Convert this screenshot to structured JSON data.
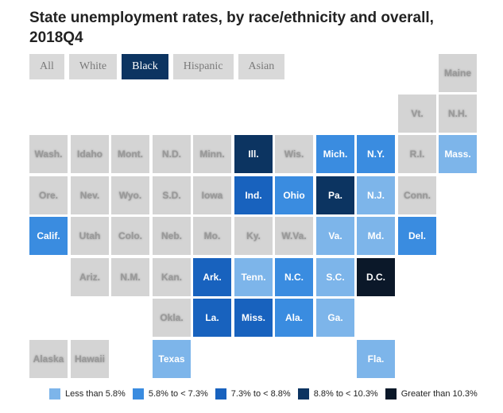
{
  "title": "State unemployment rates, by race/ethnicity and overall, 2018Q4",
  "tabs": [
    {
      "label": "All",
      "active": false
    },
    {
      "label": "White",
      "active": false
    },
    {
      "label": "Black",
      "active": true
    },
    {
      "label": "Hispanic",
      "active": false
    },
    {
      "label": "Asian",
      "active": false
    }
  ],
  "colors": {
    "nodata": "#d4d4d4",
    "bin0": "#7db5ea",
    "bin1": "#3a8ce0",
    "bin2": "#1862be",
    "bin3": "#0c3461",
    "bin4": "#0b1829"
  },
  "chart_data": {
    "type": "tile-map",
    "title": "State unemployment rates, by race/ethnicity and overall, 2018Q4",
    "selected_group": "Black",
    "legend": [
      {
        "label": "Less than 5.8%",
        "color": "#7db5ea"
      },
      {
        "label": "5.8% to < 7.3%",
        "color": "#3a8ce0"
      },
      {
        "label": "7.3% to < 8.8%",
        "color": "#1862be"
      },
      {
        "label": "8.8% to < 10.3%",
        "color": "#0c3461"
      },
      {
        "label": "Greater than 10.3%",
        "color": "#0b1829"
      }
    ],
    "states": [
      {
        "abbr": "Maine",
        "col": 10,
        "row": 0,
        "bin": null
      },
      {
        "abbr": "Vt.",
        "col": 9,
        "row": 1,
        "bin": null
      },
      {
        "abbr": "N.H.",
        "col": 10,
        "row": 1,
        "bin": null
      },
      {
        "abbr": "Wash.",
        "col": 0,
        "row": 2,
        "bin": null
      },
      {
        "abbr": "Idaho",
        "col": 1,
        "row": 2,
        "bin": null
      },
      {
        "abbr": "Mont.",
        "col": 2,
        "row": 2,
        "bin": null
      },
      {
        "abbr": "N.D.",
        "col": 3,
        "row": 2,
        "bin": null
      },
      {
        "abbr": "Minn.",
        "col": 4,
        "row": 2,
        "bin": null
      },
      {
        "abbr": "Ill.",
        "col": 5,
        "row": 2,
        "bin": 3
      },
      {
        "abbr": "Wis.",
        "col": 6,
        "row": 2,
        "bin": null
      },
      {
        "abbr": "Mich.",
        "col": 7,
        "row": 2,
        "bin": 1
      },
      {
        "abbr": "N.Y.",
        "col": 8,
        "row": 2,
        "bin": 1
      },
      {
        "abbr": "R.I.",
        "col": 9,
        "row": 2,
        "bin": null
      },
      {
        "abbr": "Mass.",
        "col": 10,
        "row": 2,
        "bin": 0
      },
      {
        "abbr": "Ore.",
        "col": 0,
        "row": 3,
        "bin": null
      },
      {
        "abbr": "Nev.",
        "col": 1,
        "row": 3,
        "bin": null
      },
      {
        "abbr": "Wyo.",
        "col": 2,
        "row": 3,
        "bin": null
      },
      {
        "abbr": "S.D.",
        "col": 3,
        "row": 3,
        "bin": null
      },
      {
        "abbr": "Iowa",
        "col": 4,
        "row": 3,
        "bin": null
      },
      {
        "abbr": "Ind.",
        "col": 5,
        "row": 3,
        "bin": 2
      },
      {
        "abbr": "Ohio",
        "col": 6,
        "row": 3,
        "bin": 1
      },
      {
        "abbr": "Pa.",
        "col": 7,
        "row": 3,
        "bin": 3
      },
      {
        "abbr": "N.J.",
        "col": 8,
        "row": 3,
        "bin": 0
      },
      {
        "abbr": "Conn.",
        "col": 9,
        "row": 3,
        "bin": null
      },
      {
        "abbr": "Calif.",
        "col": 0,
        "row": 4,
        "bin": 1
      },
      {
        "abbr": "Utah",
        "col": 1,
        "row": 4,
        "bin": null
      },
      {
        "abbr": "Colo.",
        "col": 2,
        "row": 4,
        "bin": null
      },
      {
        "abbr": "Neb.",
        "col": 3,
        "row": 4,
        "bin": null
      },
      {
        "abbr": "Mo.",
        "col": 4,
        "row": 4,
        "bin": null
      },
      {
        "abbr": "Ky.",
        "col": 5,
        "row": 4,
        "bin": null
      },
      {
        "abbr": "W.Va.",
        "col": 6,
        "row": 4,
        "bin": null
      },
      {
        "abbr": "Va.",
        "col": 7,
        "row": 4,
        "bin": 0
      },
      {
        "abbr": "Md.",
        "col": 8,
        "row": 4,
        "bin": 0
      },
      {
        "abbr": "Del.",
        "col": 9,
        "row": 4,
        "bin": 1
      },
      {
        "abbr": "Ariz.",
        "col": 1,
        "row": 5,
        "bin": null
      },
      {
        "abbr": "N.M.",
        "col": 2,
        "row": 5,
        "bin": null
      },
      {
        "abbr": "Kan.",
        "col": 3,
        "row": 5,
        "bin": null
      },
      {
        "abbr": "Ark.",
        "col": 4,
        "row": 5,
        "bin": 2
      },
      {
        "abbr": "Tenn.",
        "col": 5,
        "row": 5,
        "bin": 0
      },
      {
        "abbr": "N.C.",
        "col": 6,
        "row": 5,
        "bin": 1
      },
      {
        "abbr": "S.C.",
        "col": 7,
        "row": 5,
        "bin": 0
      },
      {
        "abbr": "D.C.",
        "col": 8,
        "row": 5,
        "bin": 4
      },
      {
        "abbr": "Okla.",
        "col": 3,
        "row": 6,
        "bin": null
      },
      {
        "abbr": "La.",
        "col": 4,
        "row": 6,
        "bin": 2
      },
      {
        "abbr": "Miss.",
        "col": 5,
        "row": 6,
        "bin": 2
      },
      {
        "abbr": "Ala.",
        "col": 6,
        "row": 6,
        "bin": 1
      },
      {
        "abbr": "Ga.",
        "col": 7,
        "row": 6,
        "bin": 0
      },
      {
        "abbr": "Alaska",
        "col": 0,
        "row": 7,
        "bin": null
      },
      {
        "abbr": "Hawaii",
        "col": 1,
        "row": 7,
        "bin": null
      },
      {
        "abbr": "Texas",
        "col": 3,
        "row": 7,
        "bin": 0
      },
      {
        "abbr": "Fla.",
        "col": 8,
        "row": 7,
        "bin": 0
      }
    ]
  }
}
